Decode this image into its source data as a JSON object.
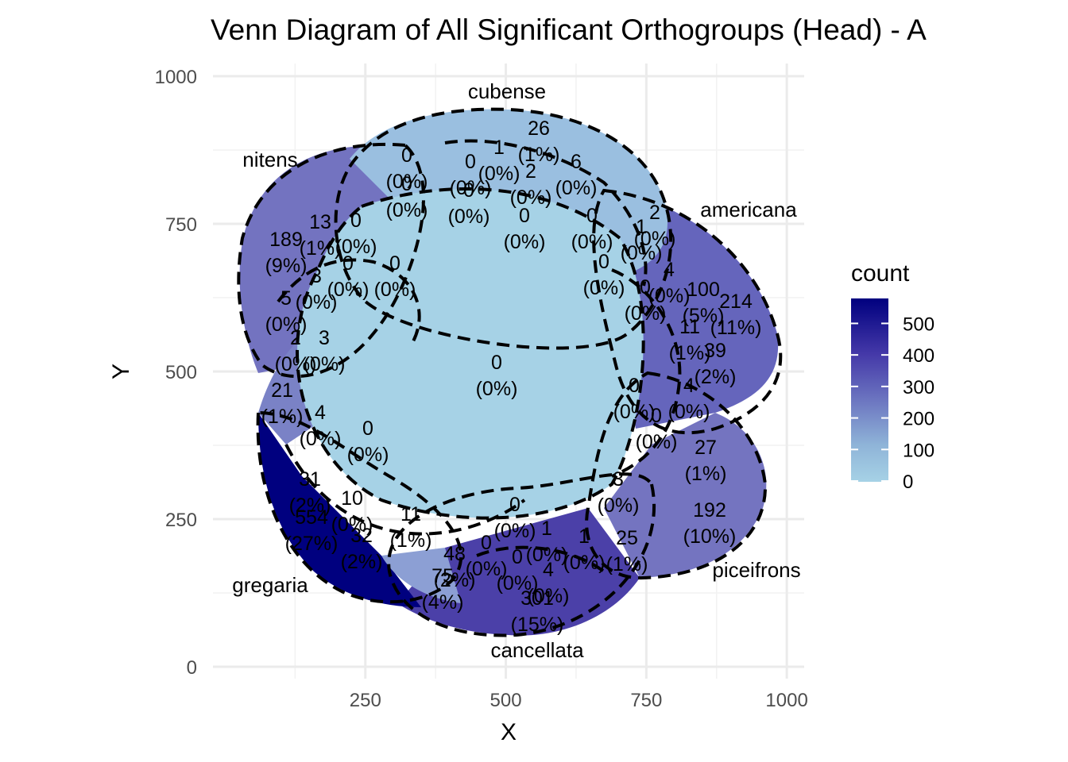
{
  "chart_data": {
    "type": "venn",
    "title": "Venn Diagram of All Significant Orthogroups (Head) - A",
    "xlabel": "X",
    "ylabel": "Y",
    "xlim": [
      0,
      1000
    ],
    "ylim": [
      0,
      1000
    ],
    "x_ticks": [
      "250",
      "500",
      "750",
      "1000"
    ],
    "y_ticks": [
      "0",
      "250",
      "500",
      "750",
      "1000"
    ],
    "grid": true,
    "legend": {
      "title": "count",
      "position": "right",
      "ticks": [
        "0",
        "100",
        "200",
        "300",
        "400",
        "500"
      ],
      "low_color": "#a6d2e6",
      "high_color": "#00007f"
    },
    "sets": [
      "cubense",
      "americana",
      "piceifrons",
      "cancellata",
      "gregaria",
      "nitens"
    ],
    "regions": [
      {
        "count": "0",
        "pct": "(0%)"
      },
      {
        "count": "189",
        "pct": "(9%)"
      },
      {
        "count": "214",
        "pct": "(11%)"
      },
      {
        "count": "192",
        "pct": "(10%)"
      },
      {
        "count": "301",
        "pct": "(15%)"
      },
      {
        "count": "554",
        "pct": "(27%)"
      },
      {
        "count": "26",
        "pct": "(1%)"
      },
      {
        "count": "100",
        "pct": "(5%)"
      },
      {
        "count": "75",
        "pct": "(4%)"
      },
      {
        "count": "48",
        "pct": "(2%)"
      },
      {
        "count": "39",
        "pct": "(2%)"
      },
      {
        "count": "31",
        "pct": "(2%)"
      },
      {
        "count": "32",
        "pct": "(2%)"
      },
      {
        "count": "27",
        "pct": "(1%)"
      },
      {
        "count": "25",
        "pct": "(1%)"
      },
      {
        "count": "21",
        "pct": "(1%)"
      },
      {
        "count": "13",
        "pct": "(1%)"
      },
      {
        "count": "11",
        "pct": "(1%)"
      },
      {
        "count": "11",
        "pct": "(1%)"
      },
      {
        "count": "10",
        "pct": "(0%)"
      },
      {
        "count": "5",
        "pct": "(0%)"
      },
      {
        "count": "4",
        "pct": "(0%)"
      },
      {
        "count": "3",
        "pct": "(0%)"
      },
      {
        "count": "3",
        "pct": "(0%)"
      },
      {
        "count": "3",
        "pct": "(0%)"
      },
      {
        "count": "2",
        "pct": "(0%)"
      },
      {
        "count": "2",
        "pct": "(0%)"
      },
      {
        "count": "2",
        "pct": "(0%)"
      },
      {
        "count": "1",
        "pct": "(0%)"
      },
      {
        "count": "1",
        "pct": "(0%)"
      },
      {
        "count": "1",
        "pct": "(0%)"
      },
      {
        "count": "1",
        "pct": "(0%)"
      },
      {
        "count": "6",
        "pct": "(0%)"
      },
      {
        "count": "4",
        "pct": "(0%)"
      },
      {
        "count": "4",
        "pct": "(0%)"
      },
      {
        "count": "4",
        "pct": "(0%)"
      },
      {
        "count": "0",
        "pct": "(0%)"
      },
      {
        "count": "0",
        "pct": "(0%)"
      },
      {
        "count": "0",
        "pct": "(0%)"
      },
      {
        "count": "0",
        "pct": "(0%)"
      },
      {
        "count": "0",
        "pct": "(0%)"
      },
      {
        "count": "0",
        "pct": "(0%)"
      },
      {
        "count": "0",
        "pct": "(0%)"
      },
      {
        "count": "0",
        "pct": "(0%)"
      },
      {
        "count": "0",
        "pct": "(0%)"
      },
      {
        "count": "0",
        "pct": "(0%)"
      },
      {
        "count": "0",
        "pct": "(0%)"
      },
      {
        "count": "0",
        "pct": "(0%)"
      },
      {
        "count": "0",
        "pct": "(0%)"
      },
      {
        "count": "0",
        "pct": "(0%)"
      },
      {
        "count": "0",
        "pct": "(0%)"
      },
      {
        "count": "0",
        "pct": "(0%)"
      },
      {
        "count": "0",
        "pct": "(0%)"
      }
    ]
  }
}
